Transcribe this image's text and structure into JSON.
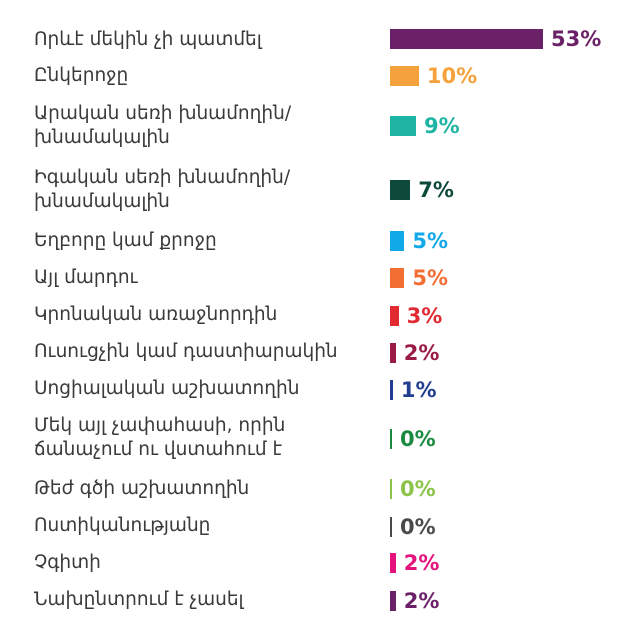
{
  "chart_data": {
    "type": "bar",
    "orientation": "horizontal",
    "unit": "%",
    "categories": [
      "Որևէ մեկին չի պատմել",
      "Ընկերոջը",
      "Արական սեռի խնամողին/խնամակալին",
      "Իգական սեռի խնամողին/խնամակալին",
      "Եղբորը կամ քրոջը",
      "Այլ մարդու",
      "Կրոնական առաջնորդին",
      "Ուսուցչին կամ դաստիարակին",
      "Սոցիալական աշխատողին",
      "Մեկ այլ չափահասի, որին ճանաչում ու վստահում է",
      "Թեժ գծի աշխատողին",
      "Ոստիկանությանը",
      "Չգիտի",
      "Նախընտրում է չասել"
    ],
    "values": [
      53,
      10,
      9,
      7,
      5,
      5,
      3,
      2,
      1,
      0,
      0,
      0,
      2,
      2
    ],
    "value_labels": [
      "53%",
      "10%",
      "9%",
      "7%",
      "5%",
      "5%",
      "3%",
      "2%",
      "1%",
      "0%",
      "0%",
      "0%",
      "2%",
      "2%"
    ],
    "colors": [
      "#6b2167",
      "#f5a13c",
      "#1fb5a5",
      "#0e4a3c",
      "#12a9e8",
      "#f26f33",
      "#e12a32",
      "#9b1b47",
      "#233d91",
      "#1a8a40",
      "#8cc44a",
      "#4a4a4a",
      "#e5127d",
      "#6b2167"
    ],
    "xlim": [
      0,
      53
    ],
    "grid": false,
    "legend": "none"
  }
}
